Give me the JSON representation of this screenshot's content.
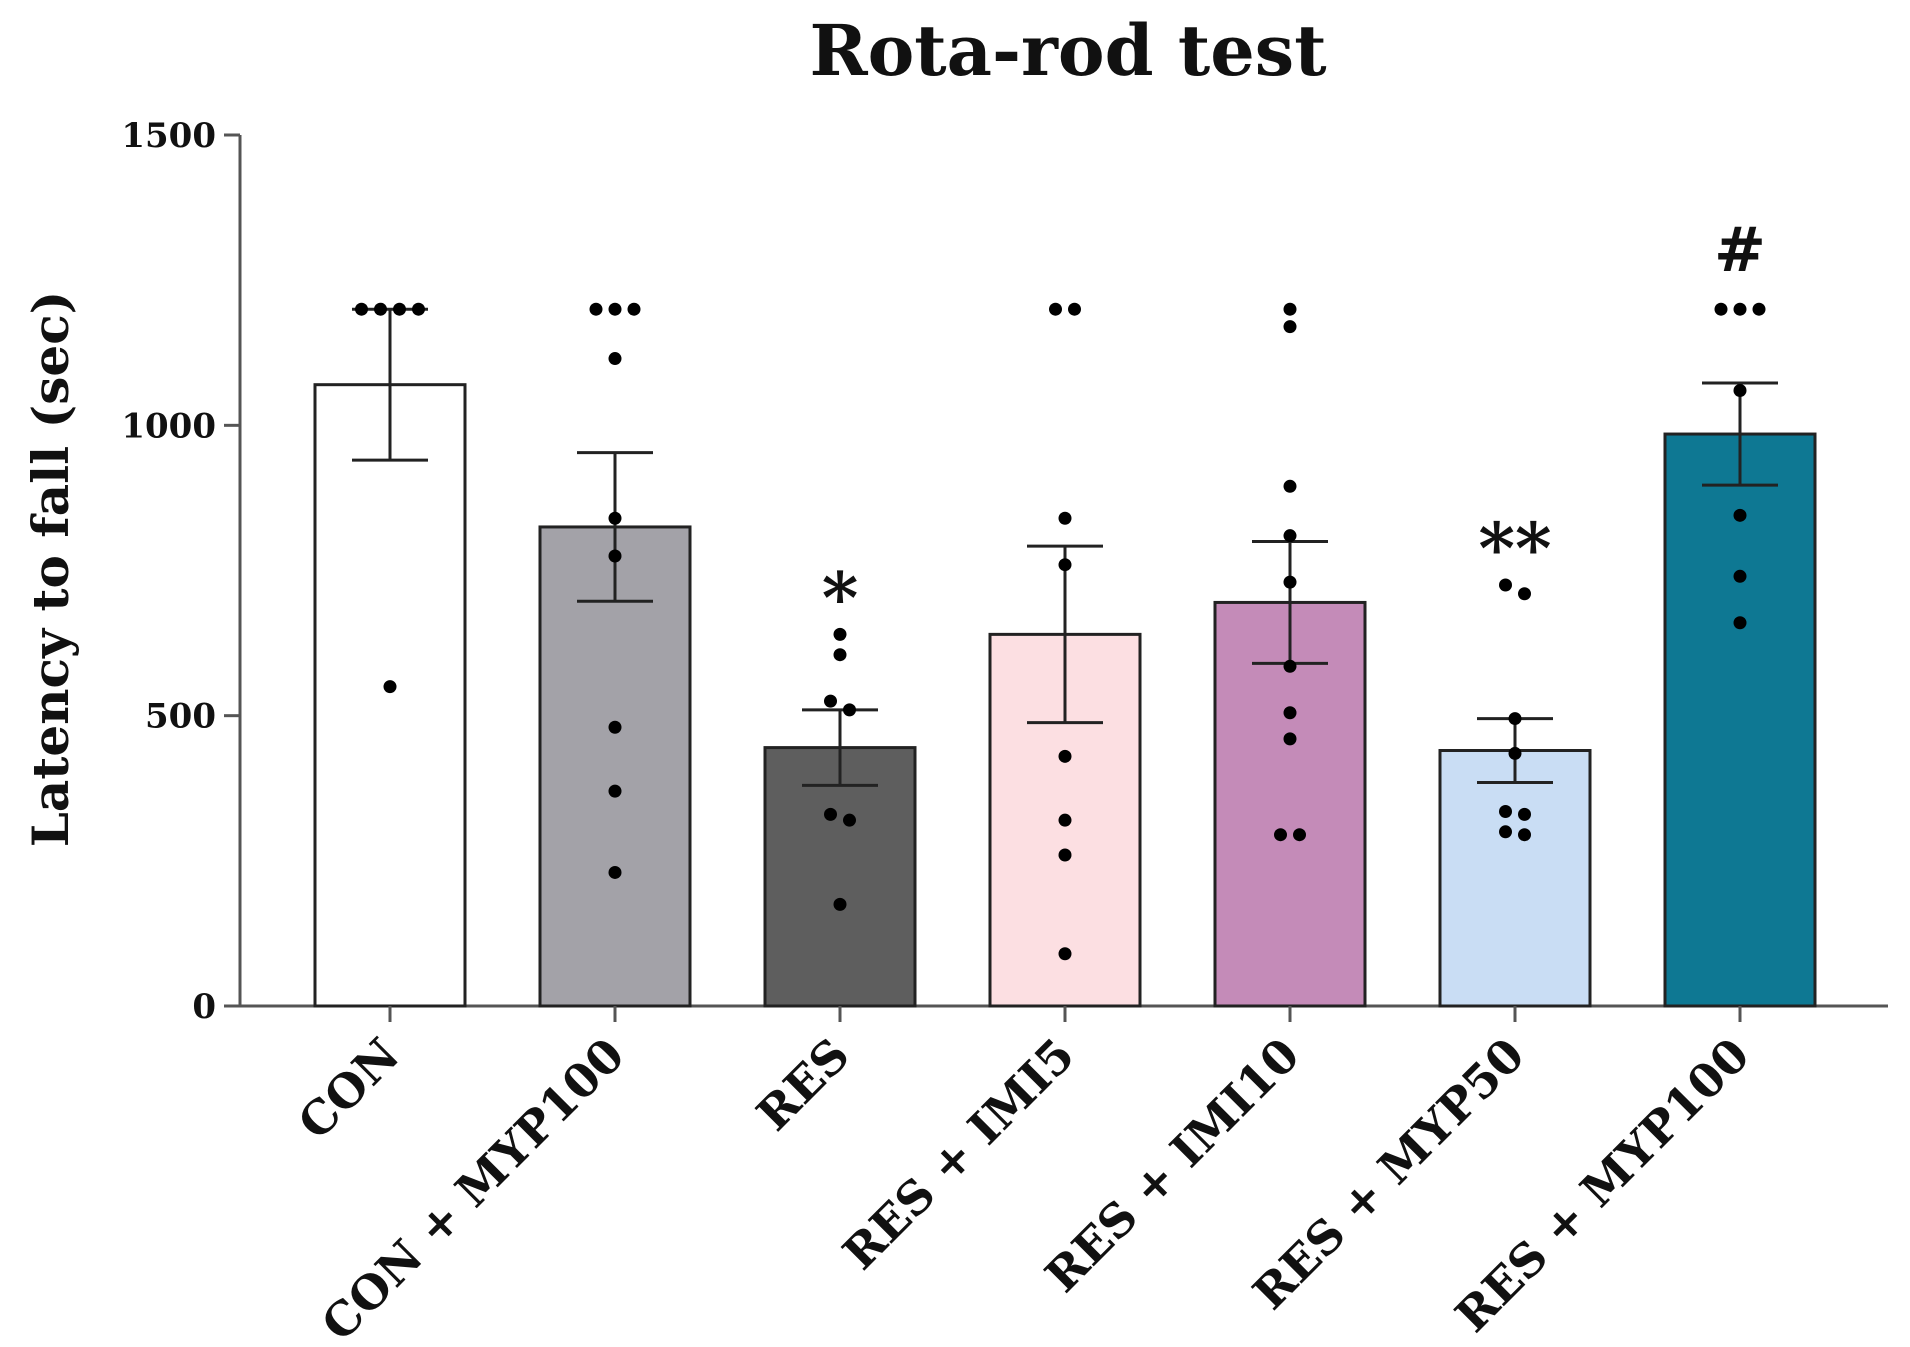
{
  "chart_data": {
    "type": "bar",
    "title": "Rota-rod test",
    "xlabel": "",
    "ylabel": "Latency to fall (sec)",
    "ylim": [
      0,
      1500
    ],
    "yticks": [
      0,
      500,
      1000,
      1500
    ],
    "grid": false,
    "categories": [
      "CON",
      "CON + MYP100",
      "RES",
      "RES + IMI5",
      "RES + IMI10",
      "RES + MYP50",
      "RES + MYP100"
    ],
    "values": [
      1070,
      825,
      445,
      640,
      695,
      440,
      985
    ],
    "errors": [
      130,
      128,
      65,
      152,
      105,
      55,
      88
    ],
    "colors": [
      "#ffffff",
      "#a3a2a8",
      "#5e5e5e",
      "#fcdfe2",
      "#c48bb8",
      "#c9ddf4",
      "#0e7893"
    ],
    "points": [
      [
        1200,
        1200,
        1200,
        1200,
        550
      ],
      [
        1200,
        1200,
        1200,
        1115,
        840,
        775,
        480,
        370,
        230
      ],
      [
        640,
        605,
        525,
        510,
        330,
        320,
        175
      ],
      [
        1200,
        1200,
        840,
        760,
        430,
        320,
        260,
        90
      ],
      [
        1200,
        1170,
        895,
        810,
        730,
        585,
        505,
        460,
        295,
        295
      ],
      [
        725,
        710,
        495,
        435,
        335,
        330,
        300,
        295
      ],
      [
        1200,
        1200,
        1200,
        1060,
        845,
        740,
        660
      ]
    ],
    "annotations": [
      "",
      "",
      "*",
      "",
      "",
      "**",
      "#"
    ]
  }
}
